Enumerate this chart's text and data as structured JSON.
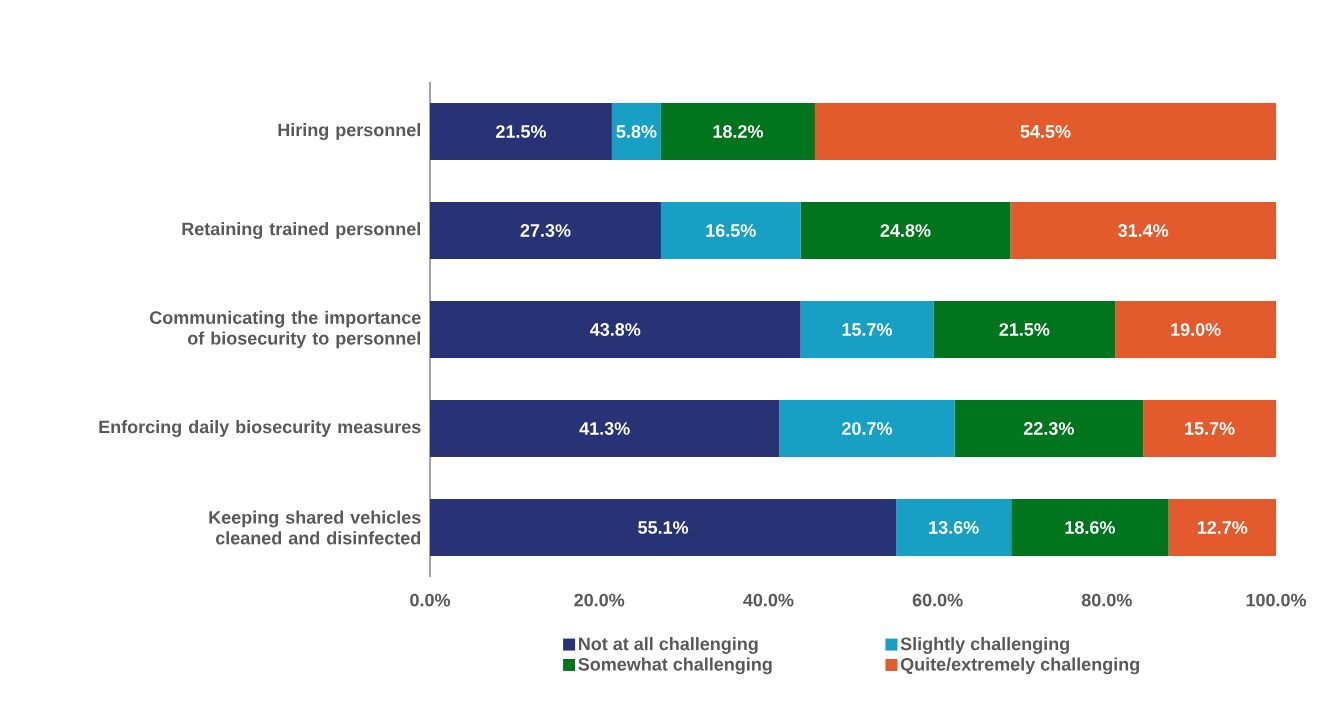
{
  "chart_data": {
    "type": "bar",
    "orientation": "horizontal",
    "stacked": true,
    "categories": [
      "Hiring personnel",
      "Retaining trained personnel",
      "Communicating the importance of biosecurity to personnel",
      "Enforcing daily biosecurity measures",
      "Keeping shared vehicles cleaned and disinfected"
    ],
    "series": [
      {
        "name": "Not at all challenging",
        "color": "#283375",
        "values": [
          21.5,
          27.3,
          43.8,
          41.3,
          55.1
        ],
        "value_labels": [
          "21.5%",
          "27.3%",
          "43.8%",
          "41.3%",
          "55.1%"
        ]
      },
      {
        "name": "Slightly challenging",
        "color": "#17a0c4",
        "values": [
          5.8,
          16.5,
          15.7,
          20.7,
          13.6
        ],
        "value_labels": [
          "5.8%",
          "16.5%",
          "15.7%",
          "20.7%",
          "13.6%"
        ]
      },
      {
        "name": "Somewhat challenging",
        "color": "#00751e",
        "values": [
          18.2,
          24.8,
          21.5,
          22.3,
          18.6
        ],
        "value_labels": [
          "18.2%",
          "24.8%",
          "21.5%",
          "22.3%",
          "18.6%"
        ]
      },
      {
        "name": "Quite/extremely challenging",
        "color": "#e35a2d",
        "values": [
          54.5,
          31.4,
          19.0,
          15.7,
          12.7
        ],
        "value_labels": [
          "54.5%",
          "31.4%",
          "19.0%",
          "15.7%",
          "12.7%"
        ]
      }
    ],
    "xlim": [
      0,
      100
    ],
    "xticks": [
      {
        "value": 0,
        "label": "0.0%"
      },
      {
        "value": 20,
        "label": "20.0%"
      },
      {
        "value": 40,
        "label": "40.0%"
      },
      {
        "value": 60,
        "label": "60.0%"
      },
      {
        "value": 80,
        "label": "80.0%"
      },
      {
        "value": 100,
        "label": "100.0%"
      }
    ],
    "legend": "bottom"
  }
}
